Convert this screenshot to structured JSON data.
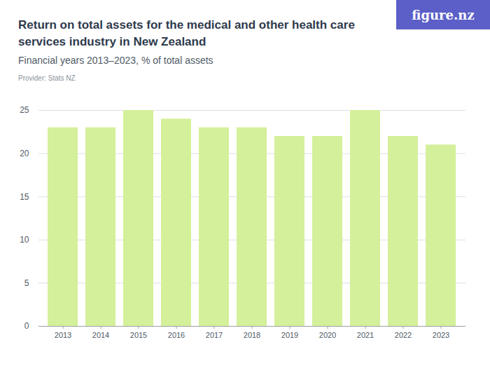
{
  "chart_data": {
    "type": "bar",
    "title": "Return on total assets for the medical and other health care services industry in New Zealand",
    "subtitle": "Financial years 2013–2023, % of total assets",
    "caption": "Provider: Stats NZ",
    "logo": "figure.nz",
    "categories": [
      "2013",
      "2014",
      "2015",
      "2016",
      "2017",
      "2018",
      "2019",
      "2020",
      "2021",
      "2022",
      "2023"
    ],
    "values": [
      23,
      23,
      25,
      24,
      23,
      23,
      22,
      22,
      25,
      22,
      21
    ],
    "color": "#d4f09a",
    "ylim": [
      0,
      25
    ],
    "yticks": [
      0,
      5,
      10,
      15,
      20,
      25
    ],
    "grid": true
  }
}
